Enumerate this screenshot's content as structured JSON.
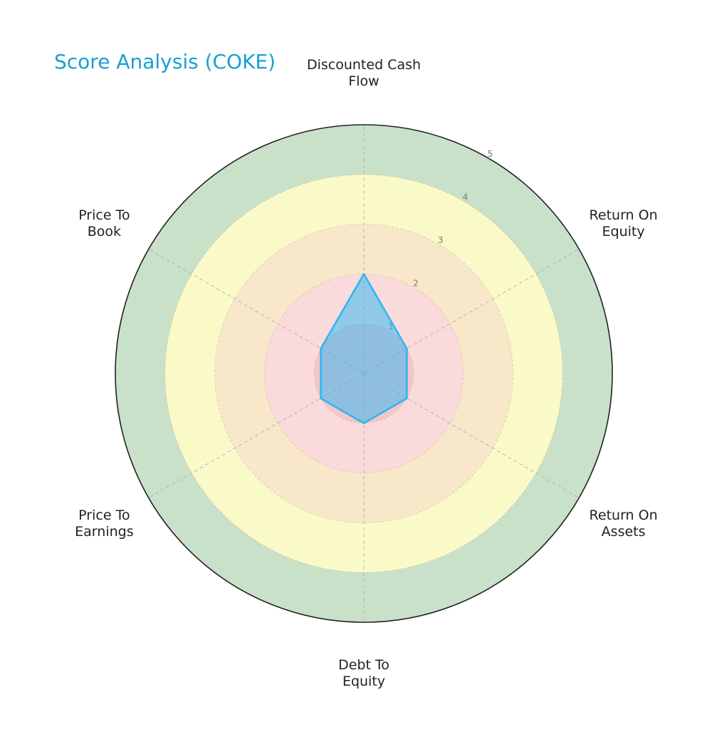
{
  "chart_data": {
    "type": "radar",
    "title": "Score Analysis (COKE)",
    "categories": [
      "Discounted Cash\nFlow",
      "Return On\nEquity",
      "Return On\nAssets",
      "Debt To\nEquity",
      "Price To\nEarnings",
      "Price To\nBook"
    ],
    "series": [
      {
        "name": "COKE",
        "color": "#29b6f6",
        "values": [
          2,
          1,
          1,
          1,
          1,
          1
        ]
      }
    ],
    "ylim": [
      0,
      5
    ],
    "yticks": [
      1,
      2,
      3,
      4,
      5
    ],
    "band_colors": [
      "#f5c6c6",
      "#fadada",
      "#f8e7c9",
      "#fafac8",
      "#c9e1c9"
    ],
    "grid": true
  }
}
